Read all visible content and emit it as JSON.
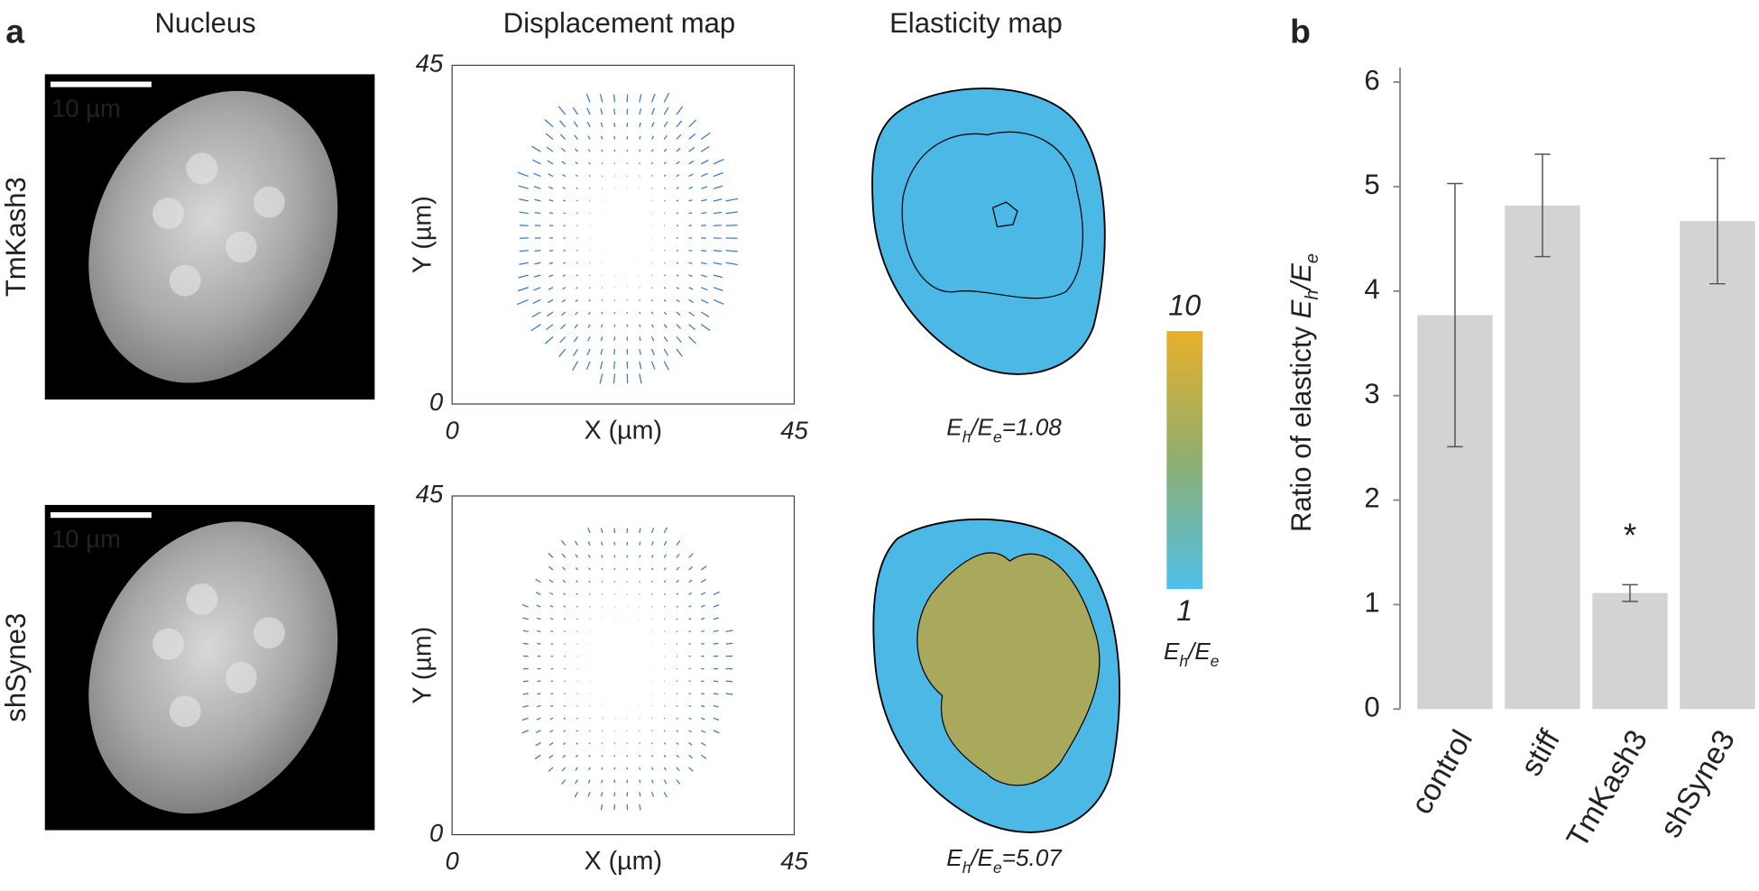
{
  "panel_labels": [
    "a",
    "b"
  ],
  "panel_a": {
    "column_titles": [
      "Nucleus",
      "Displacement map",
      "Elasticity map"
    ],
    "ratio_symbol": [
      "E",
      "h",
      "/E",
      "e"
    ],
    "rows": [
      {
        "label": "TmKash3",
        "scale_bar": "10 µm",
        "ratio_value": "=1.08",
        "xlim": [
          0,
          45
        ],
        "ylim": [
          0,
          45
        ],
        "xticks": [
          0,
          45
        ],
        "yticks": [
          0,
          45
        ],
        "x_label": "X (µm)",
        "y_label": "Y (µm)"
      },
      {
        "label": "shSyne3",
        "scale_bar": "10 µm",
        "ratio_value": "=5.07",
        "xlim": [
          0,
          45
        ],
        "ylim": [
          0,
          45
        ],
        "xticks": [
          0,
          45
        ],
        "yticks": [
          0,
          45
        ],
        "x_label": "X (µm)",
        "y_label": "Y (µm)"
      }
    ],
    "colorbar": {
      "ticks": [
        10,
        1
      ],
      "colors": [
        "#e8b02a",
        "#8fae6f",
        "#4ec0ea"
      ]
    }
  },
  "chart_data": {
    "type": "bar",
    "y_label": [
      "Ratio of elasticty ",
      "E",
      "h",
      "/E",
      "e"
    ],
    "categories": [
      "control",
      "stiff",
      "TmKash3",
      "shSyne3"
    ],
    "values": [
      3.77,
      4.82,
      1.11,
      4.67
    ],
    "errors": [
      1.26,
      0.49,
      0.08,
      0.6
    ],
    "annotation": "*",
    "color": "#d3d3d3",
    "ylim": [
      0,
      6
    ],
    "yticks": [
      0,
      1,
      2,
      3,
      4,
      5,
      6
    ]
  }
}
